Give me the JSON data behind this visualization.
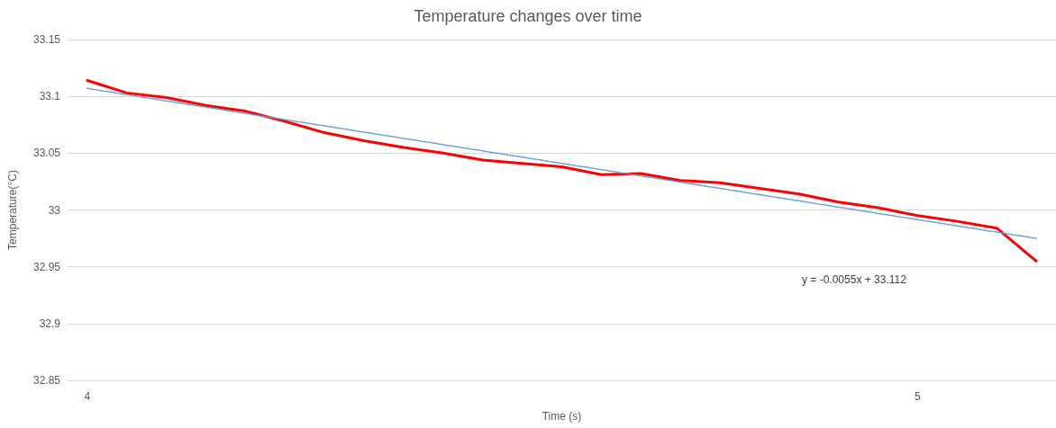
{
  "chart_data": {
    "type": "line",
    "title": "Temperature changes over time",
    "xlabel": "Time (s)",
    "ylabel": "Temperature(°C)",
    "categories": [
      "4",
      null,
      null,
      null,
      null,
      null,
      null,
      null,
      null,
      null,
      null,
      null,
      null,
      null,
      null,
      null,
      null,
      null,
      null,
      null,
      null,
      "5",
      null,
      null,
      null
    ],
    "series": [
      {
        "color": "#ff0000",
        "line_style": "solid",
        "values": [
          33.114,
          33.103,
          33.099,
          33.092,
          33.087,
          33.078,
          33.068,
          33.061,
          33.055,
          33.05,
          33.044,
          33.041,
          33.038,
          33.031,
          33.032,
          33.026,
          33.024,
          33.019,
          33.014,
          33.007,
          33.002,
          32.995,
          32.99,
          32.984,
          32.955
        ]
      },
      {
        "color": "#5b9bd5",
        "line_style": "dotted",
        "values": [
          33.107,
          null,
          null,
          null,
          null,
          null,
          null,
          null,
          null,
          null,
          null,
          null,
          null,
          null,
          null,
          null,
          null,
          null,
          null,
          null,
          null,
          null,
          null,
          null,
          32.975
        ]
      }
    ],
    "annotations": [
      "y = -0.0055x + 33.112"
    ],
    "ylim": [
      32.85,
      33.15
    ],
    "yticks": [
      32.85,
      32.9,
      32.95,
      33,
      33.05,
      33.1,
      33.15
    ],
    "grid": "y",
    "marker": "none"
  }
}
